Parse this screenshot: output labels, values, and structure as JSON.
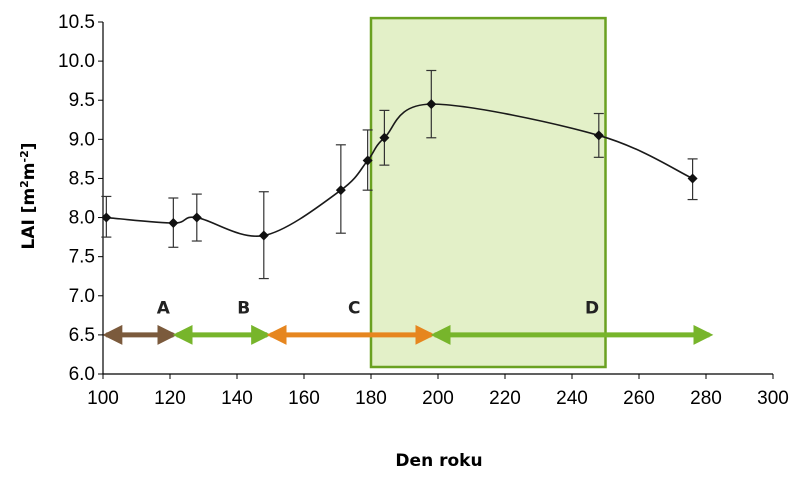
{
  "chart_data": {
    "type": "line",
    "title": "",
    "xlabel": "Den roku",
    "ylabel": "LAI [m²m⁻²]",
    "ylabel_parts": {
      "base": "LAI [m",
      "sup1": "2",
      "mid": "m",
      "sup2": "-2",
      "end": "]"
    },
    "xlim": [
      100,
      300
    ],
    "ylim": [
      6.0,
      10.5
    ],
    "xticks": [
      "100",
      "120",
      "140",
      "160",
      "180",
      "200",
      "220",
      "240",
      "260",
      "280",
      "300"
    ],
    "yticks": [
      "6.0",
      "6.5",
      "7.0",
      "7.5",
      "8.0",
      "8.5",
      "9.0",
      "9.5",
      "10.0",
      "10.5"
    ],
    "grid": false,
    "series": [
      {
        "points": [
          {
            "x": 101,
            "y": 8.0,
            "err_low": 7.75,
            "err_high": 8.27
          },
          {
            "x": 121,
            "y": 7.93,
            "err_low": 7.62,
            "err_high": 8.25
          },
          {
            "x": 128,
            "y": 8.0,
            "err_low": 7.7,
            "err_high": 8.3
          },
          {
            "x": 148,
            "y": 7.77,
            "err_low": 7.22,
            "err_high": 8.33
          },
          {
            "x": 171,
            "y": 8.35,
            "err_low": 7.8,
            "err_high": 8.93
          },
          {
            "x": 179,
            "y": 8.73,
            "err_low": 8.35,
            "err_high": 9.12
          },
          {
            "x": 184,
            "y": 9.02,
            "err_low": 8.67,
            "err_high": 9.37
          },
          {
            "x": 198,
            "y": 9.45,
            "err_low": 9.02,
            "err_high": 9.88
          },
          {
            "x": 248,
            "y": 9.05,
            "err_low": 8.77,
            "err_high": 9.33
          },
          {
            "x": 276,
            "y": 8.5,
            "err_low": 8.23,
            "err_high": 8.75
          }
        ],
        "color": "#1a1a1a"
      }
    ],
    "highlight_region": {
      "x_start": 180,
      "x_end": 250,
      "y_start": 6.0,
      "y_end": 10.55,
      "fill": "#e3f0c8",
      "stroke": "#6aa121"
    },
    "phases": [
      {
        "label": "A",
        "x_start": 101,
        "x_end": 121,
        "color": "#7b5a3c"
      },
      {
        "label": "B",
        "x_start": 122,
        "x_end": 149,
        "color": "#77b52b"
      },
      {
        "label": "C",
        "x_start": 150,
        "x_end": 198,
        "color": "#e6861f"
      },
      {
        "label": "D",
        "x_start": 199,
        "x_end": 281,
        "color": "#77b52b"
      }
    ],
    "phase_y": 6.5,
    "phase_label_y": 6.85,
    "phase_label_x": {
      "A": 118,
      "B": 142,
      "C": 175,
      "D": 246
    }
  }
}
